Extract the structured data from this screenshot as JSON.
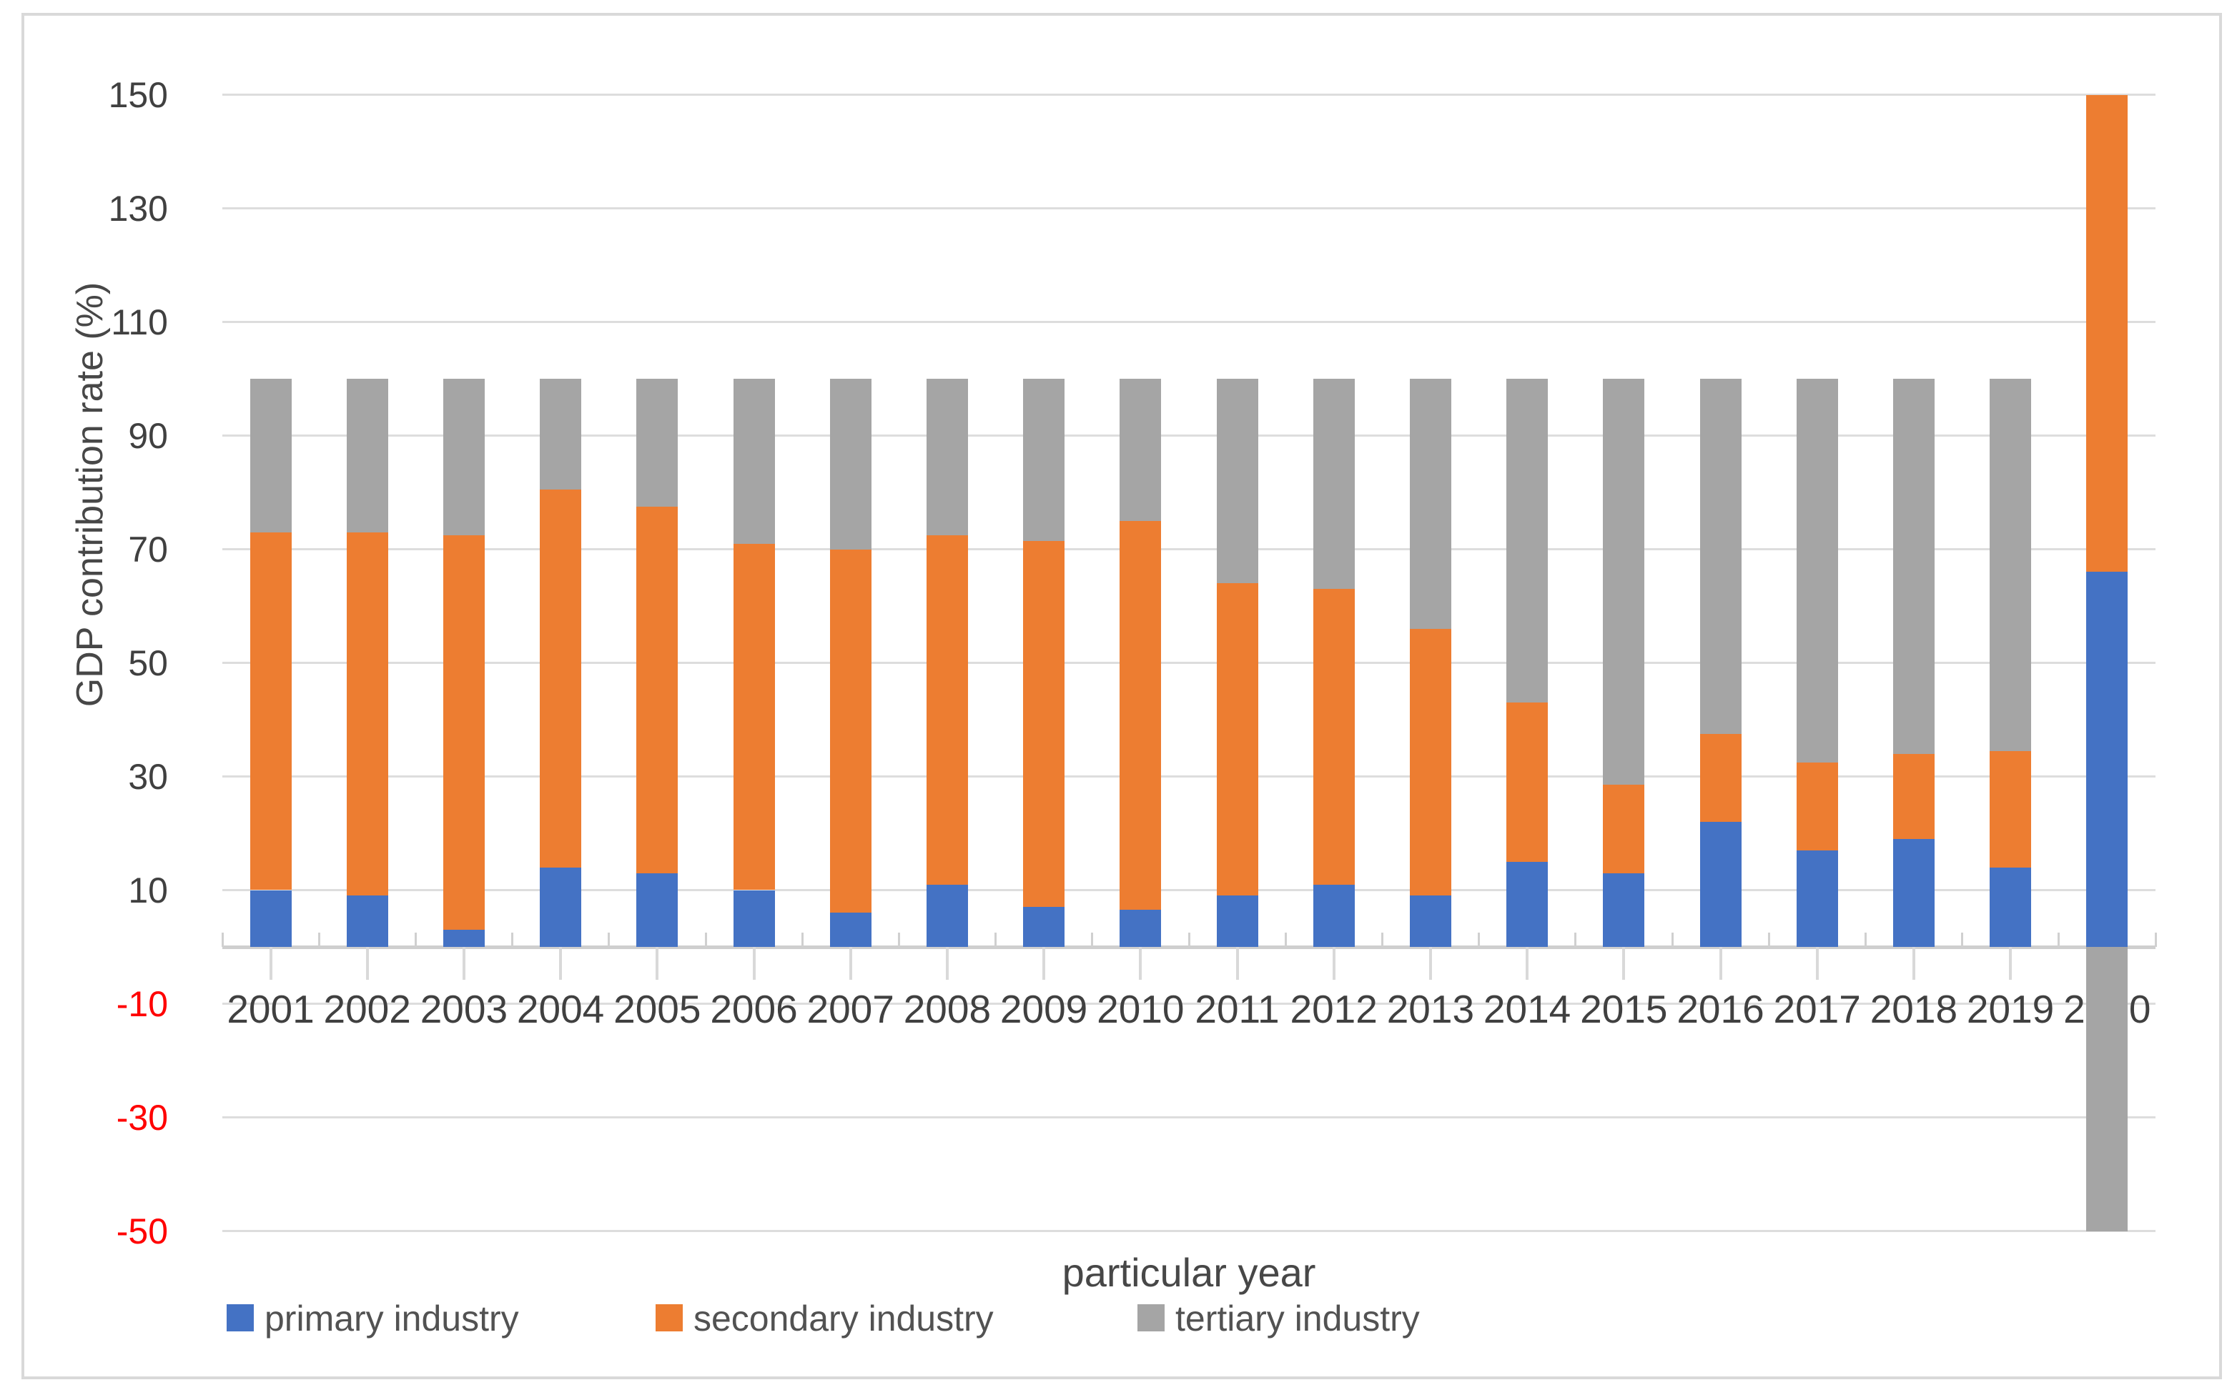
{
  "figure": {
    "background": "#ffffff",
    "frame_color": "#d9d9d9"
  },
  "chart_data": {
    "type": "bar",
    "stacked": true,
    "grid": true,
    "title": "",
    "xlabel": "particular year",
    "ylabel": "GDP contribution rate (%)",
    "ylim": [
      -50,
      150
    ],
    "y_ticks": [
      150,
      130,
      110,
      90,
      70,
      50,
      30,
      10,
      -10,
      -30,
      -50
    ],
    "negative_tick_color": "#ff0000",
    "tick_label_color": "#404040",
    "legend_position": "bottom",
    "categories": [
      "2001",
      "2002",
      "2003",
      "2004",
      "2005",
      "2006",
      "2007",
      "2008",
      "2009",
      "2010",
      "2011",
      "2012",
      "2013",
      "2014",
      "2015",
      "2016",
      "2017",
      "2018",
      "2019",
      "2020"
    ],
    "series": [
      {
        "name": "primary industry",
        "color": "#4472C4",
        "values": [
          10,
          9,
          3,
          14,
          13,
          10,
          6,
          11,
          7,
          6.5,
          9,
          11,
          9,
          15,
          13,
          22,
          17,
          19,
          14,
          66
        ]
      },
      {
        "name": "secondary industry",
        "color": "#ED7D31",
        "values": [
          63,
          64,
          69.5,
          66.5,
          64.5,
          61,
          64,
          61.5,
          64.5,
          68.5,
          55,
          52,
          47,
          28,
          15.5,
          15.5,
          15.5,
          15,
          20.5,
          84
        ]
      },
      {
        "name": "tertiary industry",
        "color": "#A5A5A5",
        "values": [
          27,
          27,
          27.5,
          19.5,
          22.5,
          29,
          30,
          27.5,
          28.5,
          25,
          36,
          37,
          44,
          57,
          71.5,
          62.5,
          67.5,
          66,
          65.5,
          -50
        ]
      }
    ]
  }
}
